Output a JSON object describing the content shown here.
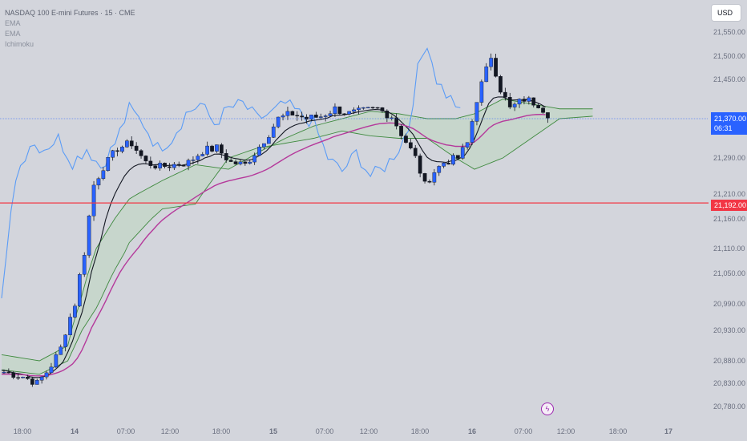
{
  "legend": {
    "title": "NASDAQ 100 E-mini Futures · 15 · CME",
    "indicators": [
      "EMA",
      "EMA",
      "Ichimoku"
    ]
  },
  "currency_button": "USD",
  "current_price": {
    "value": "21,370.00",
    "countdown": "06:31"
  },
  "horizontal_level": {
    "value": "21,192.00",
    "price": 21192,
    "color": "#f23645"
  },
  "icons": {
    "event_marker": "lightning-bolt-icon"
  },
  "colors": {
    "background": "#d3d5dc",
    "candle_up": "#2962ff",
    "candle_down": "#131722",
    "ema_fast": "#131722",
    "ema_slow": "#b5399b",
    "lagging_span": "#5b9cf6",
    "cloud_line": "#3f8a3f",
    "cloud_fill": "#bfd7c2",
    "accent": "#2962ff"
  },
  "chart_data": {
    "type": "candlestick",
    "title": "NASDAQ 100 E-mini Futures · 15 · CME",
    "y_axis": {
      "min": 20760,
      "max": 21580,
      "ticks": [
        21550,
        21500,
        21450,
        21370,
        21290,
        21210,
        21160,
        21110,
        21050,
        20990,
        20930,
        20880,
        20830,
        20780
      ],
      "tick_labels": [
        "21,550.00",
        "21,500.00",
        "21,450.00",
        "21,370.00",
        "21,290.00",
        "21,210.00",
        "21,160.00",
        "21,110.00",
        "21,050.00",
        "20,990.00",
        "20,930.00",
        "20,880.00",
        "20,830.00",
        "20,780.00"
      ]
    },
    "x_axis": {
      "labels": [
        "18:00",
        "14",
        "07:00",
        "12:00",
        "18:00",
        "15",
        "07:00",
        "12:00",
        "18:00",
        "16",
        "07:00",
        "12:00",
        "18:00",
        "17"
      ],
      "bold": [
        false,
        true,
        false,
        false,
        false,
        true,
        false,
        false,
        false,
        true,
        false,
        false,
        false,
        true
      ]
    },
    "price_keyframes": [
      [
        0,
        20855
      ],
      [
        4,
        20845
      ],
      [
        7,
        20830
      ],
      [
        9,
        20855
      ],
      [
        12,
        20900
      ],
      [
        15,
        20990
      ],
      [
        17,
        21100
      ],
      [
        19,
        21230
      ],
      [
        21,
        21270
      ],
      [
        24,
        21310
      ],
      [
        27,
        21320
      ],
      [
        30,
        21280
      ],
      [
        33,
        21270
      ],
      [
        36,
        21275
      ],
      [
        39,
        21280
      ],
      [
        42,
        21305
      ],
      [
        45,
        21310
      ],
      [
        48,
        21280
      ],
      [
        51,
        21275
      ],
      [
        53,
        21300
      ],
      [
        56,
        21340
      ],
      [
        58,
        21370
      ],
      [
        61,
        21380
      ],
      [
        64,
        21370
      ],
      [
        67,
        21375
      ],
      [
        70,
        21390
      ],
      [
        73,
        21380
      ],
      [
        76,
        21385
      ],
      [
        79,
        21390
      ],
      [
        82,
        21375
      ],
      [
        84,
        21340
      ],
      [
        87,
        21290
      ],
      [
        89,
        21230
      ],
      [
        91,
        21260
      ],
      [
        93,
        21280
      ],
      [
        96,
        21290
      ],
      [
        98,
        21320
      ],
      [
        100,
        21410
      ],
      [
        103,
        21500
      ],
      [
        105,
        21430
      ],
      [
        107,
        21390
      ],
      [
        110,
        21410
      ],
      [
        113,
        21400
      ],
      [
        115,
        21380
      ]
    ],
    "candle_count": 116,
    "series": [
      {
        "kind": "ema_fast",
        "color": "#131722"
      },
      {
        "kind": "ema_slow",
        "color": "#b5399b"
      },
      {
        "kind": "lagging_span",
        "color": "#5b9cf6"
      },
      {
        "kind": "ichimoku_cloud",
        "color": "#3f8a3f"
      }
    ],
    "lagging_keyframes": [
      [
        0,
        21000
      ],
      [
        3,
        21250
      ],
      [
        6,
        21320
      ],
      [
        9,
        21310
      ],
      [
        12,
        21330
      ],
      [
        15,
        21280
      ],
      [
        18,
        21310
      ],
      [
        21,
        21270
      ],
      [
        24,
        21320
      ],
      [
        27,
        21390
      ],
      [
        30,
        21360
      ],
      [
        33,
        21310
      ],
      [
        36,
        21330
      ],
      [
        39,
        21380
      ],
      [
        42,
        21400
      ],
      [
        45,
        21360
      ],
      [
        48,
        21390
      ],
      [
        51,
        21400
      ],
      [
        54,
        21370
      ],
      [
        57,
        21380
      ],
      [
        60,
        21400
      ],
      [
        63,
        21380
      ],
      [
        66,
        21360
      ],
      [
        69,
        21290
      ],
      [
        72,
        21260
      ],
      [
        75,
        21300
      ],
      [
        78,
        21250
      ],
      [
        81,
        21270
      ],
      [
        84,
        21310
      ],
      [
        86,
        21350
      ],
      [
        88,
        21470
      ],
      [
        90,
        21530
      ],
      [
        92,
        21450
      ],
      [
        94,
        21420
      ],
      [
        96,
        21400
      ],
      [
        97,
        21380
      ]
    ],
    "cloud_a_keyframes": [
      [
        0,
        20890
      ],
      [
        8,
        20880
      ],
      [
        14,
        20905
      ],
      [
        20,
        21110
      ],
      [
        27,
        21200
      ],
      [
        34,
        21240
      ],
      [
        41,
        21275
      ],
      [
        48,
        21265
      ],
      [
        54,
        21300
      ],
      [
        60,
        21330
      ],
      [
        66,
        21355
      ],
      [
        72,
        21370
      ],
      [
        78,
        21385
      ],
      [
        84,
        21380
      ],
      [
        90,
        21370
      ],
      [
        96,
        21370
      ],
      [
        100,
        21380
      ],
      [
        106,
        21410
      ],
      [
        112,
        21400
      ],
      [
        118,
        21390
      ],
      [
        125,
        21390
      ]
    ],
    "cloud_b_keyframes": [
      [
        0,
        20860
      ],
      [
        8,
        20850
      ],
      [
        14,
        20880
      ],
      [
        20,
        20980
      ],
      [
        27,
        21120
      ],
      [
        34,
        21180
      ],
      [
        41,
        21190
      ],
      [
        48,
        21290
      ],
      [
        54,
        21310
      ],
      [
        60,
        21320
      ],
      [
        66,
        21330
      ],
      [
        72,
        21345
      ],
      [
        78,
        21335
      ],
      [
        84,
        21330
      ],
      [
        90,
        21330
      ],
      [
        96,
        21290
      ],
      [
        100,
        21265
      ],
      [
        106,
        21290
      ],
      [
        112,
        21330
      ],
      [
        118,
        21370
      ],
      [
        125,
        21375
      ]
    ]
  }
}
